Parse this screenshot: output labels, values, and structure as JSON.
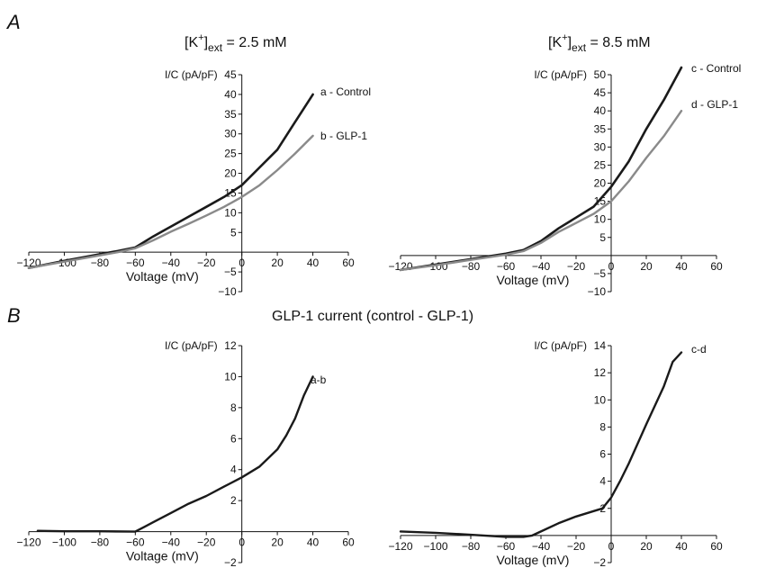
{
  "panel_a_label": "A",
  "panel_b_label": "B",
  "panel_b_title": "GLP-1 current (control - GLP-1)",
  "colors": {
    "control": "#1a1a1a",
    "glp1": "#8a8a8a",
    "difference": "#1a1a1a",
    "axis": "#111111"
  },
  "chart_data": [
    {
      "type": "line",
      "title_prefix": "[K",
      "title_sup": "+",
      "title_sub": "ext",
      "title_suffix": " = 2.5 mM",
      "xlabel": "Voltage (mV)",
      "ylabel": "I/C (pA/pF)",
      "xlim": [
        -120,
        60
      ],
      "ylim": [
        -10,
        45
      ],
      "xticks": [
        -120,
        -100,
        -80,
        -60,
        -40,
        -20,
        0,
        20,
        40,
        60
      ],
      "yticks": [
        -10,
        -5,
        5,
        10,
        15,
        20,
        25,
        30,
        35,
        40,
        45
      ],
      "series": [
        {
          "name": "a - Control",
          "color": "#1a1a1a",
          "x": [
            -120,
            -100,
            -80,
            -70,
            -60,
            -50,
            -40,
            -30,
            -20,
            -10,
            0,
            10,
            20,
            30,
            40
          ],
          "y": [
            -4,
            -2.2,
            -0.5,
            0.3,
            1.2,
            4,
            6.5,
            9,
            11.5,
            14,
            17,
            21.5,
            26,
            33,
            40
          ]
        },
        {
          "name": "b - GLP-1",
          "color": "#8a8a8a",
          "x": [
            -120,
            -100,
            -80,
            -70,
            -60,
            -50,
            -40,
            -30,
            -20,
            -10,
            0,
            10,
            20,
            30,
            40
          ],
          "y": [
            -4,
            -2.4,
            -0.8,
            0,
            1,
            3,
            5.2,
            7.2,
            9.3,
            11.5,
            14,
            17,
            20.8,
            25,
            29.5
          ]
        }
      ]
    },
    {
      "type": "line",
      "title_prefix": "[K",
      "title_sup": "+",
      "title_sub": "ext",
      "title_suffix": " = 8.5 mM",
      "xlabel": "Voltage (mV)",
      "ylabel": "I/C (pA/pF)",
      "xlim": [
        -120,
        60
      ],
      "ylim": [
        -10,
        50
      ],
      "xticks": [
        -120,
        -100,
        -80,
        -60,
        -40,
        -20,
        0,
        20,
        40,
        60
      ],
      "yticks": [
        -10,
        -5,
        5,
        10,
        15,
        20,
        25,
        30,
        35,
        40,
        45,
        50
      ],
      "series": [
        {
          "name": "c - Control",
          "color": "#1a1a1a",
          "x": [
            -120,
            -100,
            -80,
            -60,
            -50,
            -40,
            -30,
            -20,
            -10,
            0,
            10,
            20,
            30,
            40
          ],
          "y": [
            -4,
            -2.5,
            -1,
            0.5,
            1.5,
            4,
            7.5,
            10.5,
            13.5,
            19,
            26,
            35,
            43,
            52
          ]
        },
        {
          "name": "d - GLP-1",
          "color": "#8a8a8a",
          "x": [
            -120,
            -100,
            -80,
            -60,
            -50,
            -40,
            -30,
            -20,
            -10,
            0,
            10,
            20,
            30,
            40
          ],
          "y": [
            -4,
            -2.7,
            -1.2,
            0.2,
            1.2,
            3.5,
            6.5,
            9,
            11.5,
            15,
            20.5,
            27,
            33,
            40
          ]
        }
      ]
    },
    {
      "type": "line",
      "xlabel": "Voltage (mV)",
      "ylabel": "I/C (pA/pF)",
      "xlim": [
        -120,
        60
      ],
      "ylim": [
        -2,
        12
      ],
      "xticks": [
        -120,
        -100,
        -80,
        -60,
        -40,
        -20,
        0,
        20,
        40,
        60
      ],
      "yticks": [
        -2,
        2,
        4,
        6,
        8,
        10,
        12
      ],
      "series": [
        {
          "name": "a-b",
          "color": "#1a1a1a",
          "x": [
            -115,
            -100,
            -80,
            -60,
            -55,
            -50,
            -40,
            -30,
            -20,
            -10,
            0,
            10,
            20,
            25,
            30,
            35,
            40
          ],
          "y": [
            0.05,
            0.02,
            0.02,
            0,
            0.3,
            0.6,
            1.2,
            1.8,
            2.3,
            2.9,
            3.5,
            4.2,
            5.3,
            6.2,
            7.3,
            8.8,
            10
          ]
        }
      ]
    },
    {
      "type": "line",
      "xlabel": "Voltage (mV)",
      "ylabel": "I/C (pA/pF)",
      "xlim": [
        -120,
        60
      ],
      "ylim": [
        -2,
        14
      ],
      "xticks": [
        -120,
        -100,
        -80,
        -60,
        -40,
        -20,
        0,
        20,
        40,
        60
      ],
      "yticks": [
        -2,
        2,
        4,
        6,
        8,
        10,
        12,
        14
      ],
      "series": [
        {
          "name": "c-d",
          "color": "#1a1a1a",
          "x": [
            -120,
            -100,
            -80,
            -60,
            -50,
            -45,
            -40,
            -30,
            -20,
            -10,
            -5,
            0,
            5,
            10,
            20,
            30,
            35,
            40
          ],
          "y": [
            0.3,
            0.2,
            0.05,
            -0.1,
            -0.1,
            0,
            0.3,
            0.9,
            1.4,
            1.8,
            2,
            2.8,
            4,
            5.3,
            8.2,
            11,
            12.8,
            13.5
          ]
        }
      ]
    }
  ]
}
